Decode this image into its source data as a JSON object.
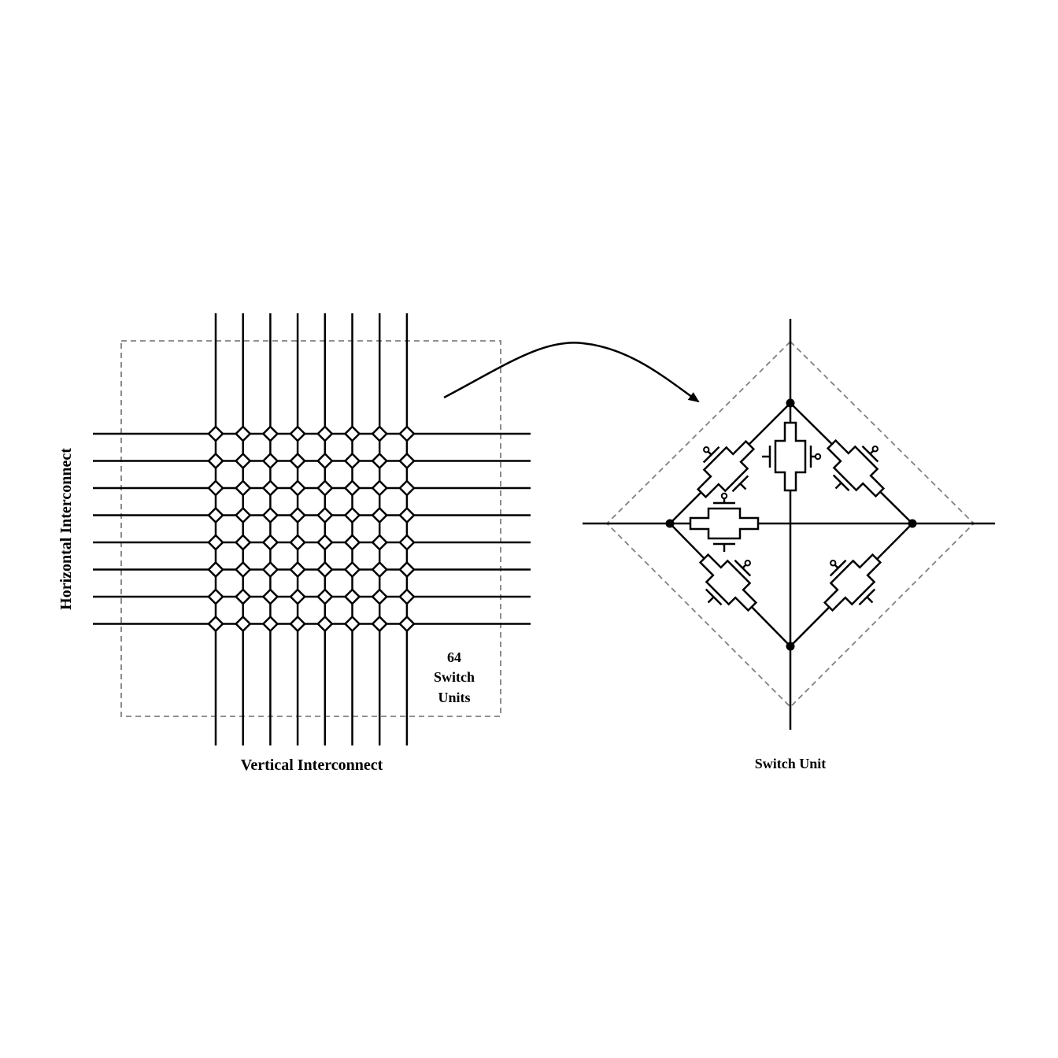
{
  "grid": {
    "vertical_label": "Vertical Interconnect",
    "horizontal_label": "Horizontal Interconnect",
    "callout": [
      "64",
      "Switch",
      "Units"
    ],
    "columns": 8,
    "rows": 8
  },
  "switch_unit": {
    "label": "Switch Unit"
  },
  "colors": {
    "line": "#000000",
    "dashed_border": "#808080",
    "background": "#ffffff"
  }
}
